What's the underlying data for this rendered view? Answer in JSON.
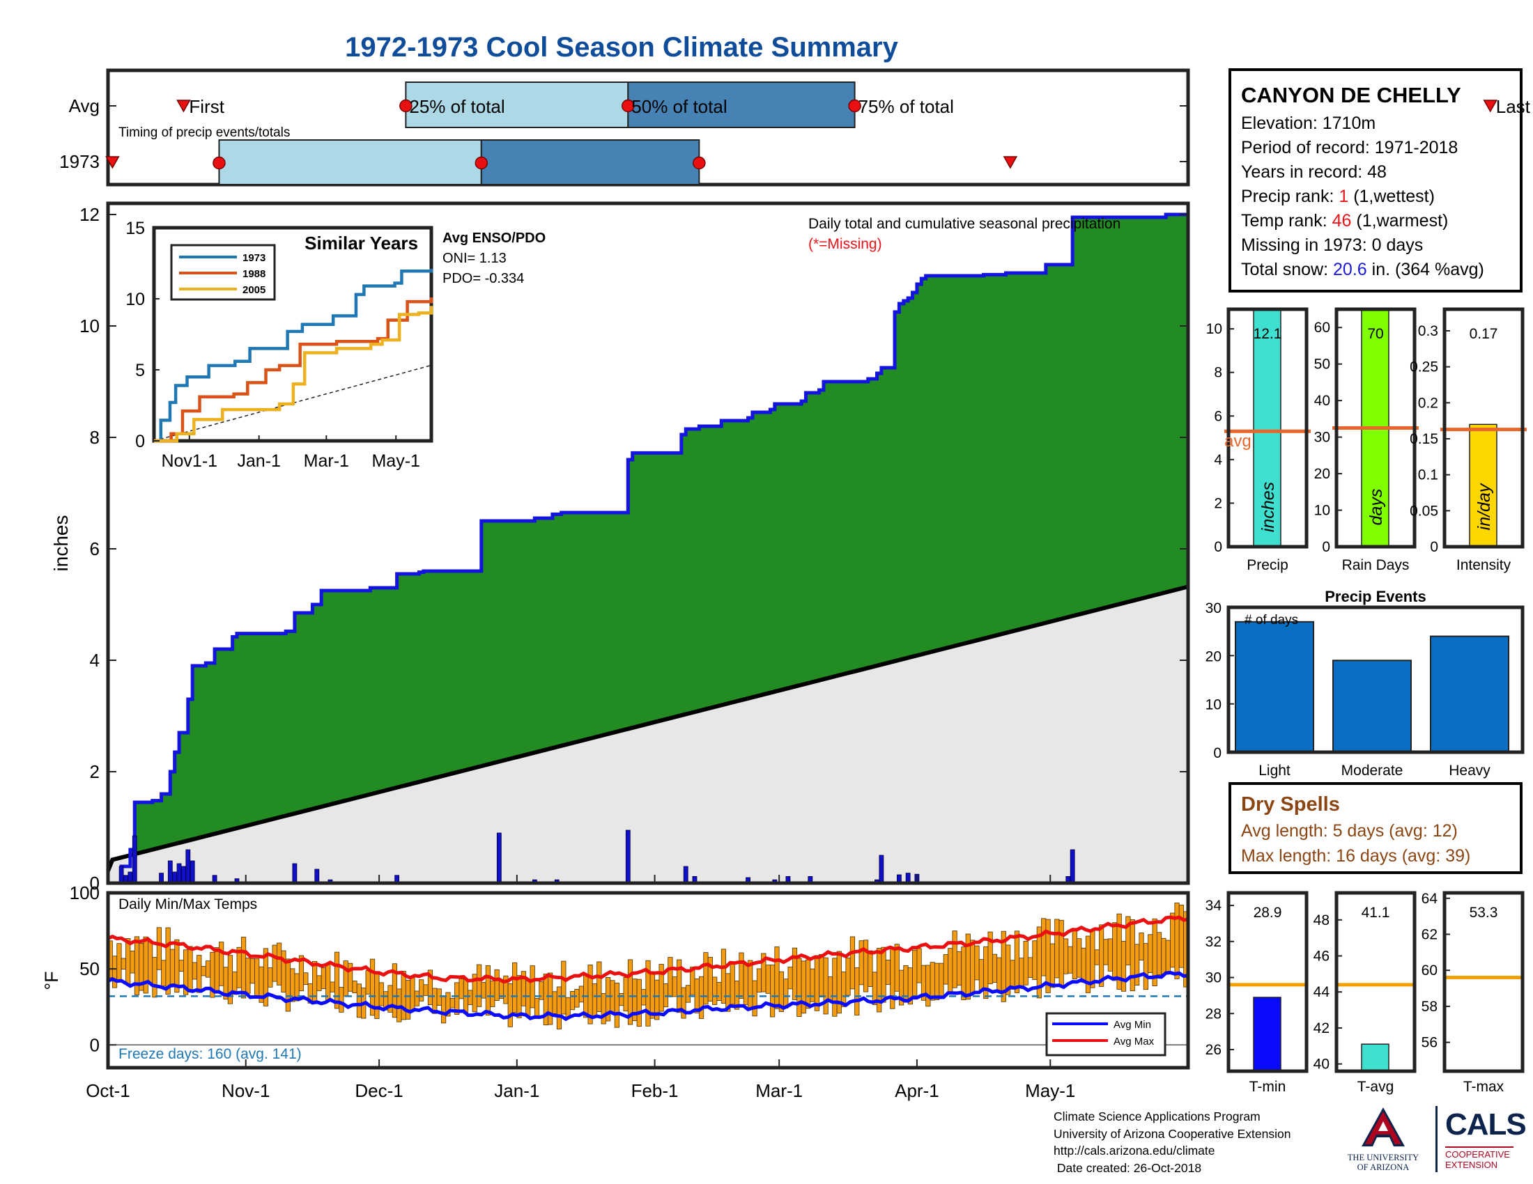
{
  "title": "1972-1973 Cool Season Climate Summary",
  "colors": {
    "title": "#0f4c9a",
    "green_fill": "#228b22",
    "normal_fill": "#e9e7e6",
    "cum_line": "#1414e0",
    "bar_light": "#add8e6",
    "bar_dark": "#4682b4",
    "orange": "#f39c12",
    "avg_line": "#e8662b"
  },
  "timing": {
    "row_labels": [
      "Avg",
      "1973"
    ],
    "caption": "Timing of precip events/totals",
    "markers": {
      "first": "First",
      "q25": "25% of total",
      "q50": "50% of total",
      "q75": "75% of total",
      "last": "Last"
    },
    "avg": {
      "first": 17,
      "q25": 67,
      "q50": 117,
      "q75": 168,
      "last": 311
    },
    "y1973": {
      "first": 1,
      "q25": 25,
      "q50": 84,
      "q75": 133,
      "last": 203
    }
  },
  "station": {
    "name": "CANYON DE CHELLY",
    "elevation": "Elevation: 1710m",
    "period": "Period of record: 1971-2018",
    "years": "Years in record: 48",
    "precip_rank_label": "Precip rank:",
    "precip_rank": "1",
    "precip_rank_note": "(1,wettest)",
    "temp_rank_label": "Temp rank:",
    "temp_rank": "46",
    "temp_rank_note": "(1,warmest)",
    "missing": "Missing in 1973: 0 days",
    "snow_label": "Total snow:",
    "snow_value": "20.6",
    "snow_note": "in. (364 %avg)"
  },
  "main_chart": {
    "ylabel": "inches",
    "annotation": "Daily total and cumulative seasonal precipitation",
    "missing_note": "(*=Missing)",
    "yticks": [
      0,
      2,
      4,
      6,
      8,
      10,
      12
    ],
    "xticks": [
      "Oct-1",
      "Nov-1",
      "Dec-1",
      "Jan-1",
      "Feb-1",
      "Mar-1",
      "Apr-1",
      "May-1"
    ],
    "xtick_days": [
      0,
      31,
      61,
      92,
      123,
      151,
      182,
      212
    ],
    "ylim": [
      0,
      12.2
    ],
    "days": 243,
    "cumulative_1973": [
      [
        0,
        0
      ],
      [
        3,
        0.3
      ],
      [
        5,
        0.6
      ],
      [
        6,
        1.45
      ],
      [
        10,
        1.48
      ],
      [
        12,
        1.6
      ],
      [
        14,
        2.0
      ],
      [
        15,
        2.35
      ],
      [
        16,
        2.7
      ],
      [
        18,
        3.3
      ],
      [
        19,
        3.9
      ],
      [
        22,
        3.95
      ],
      [
        24,
        4.2
      ],
      [
        28,
        4.42
      ],
      [
        29,
        4.48
      ],
      [
        40,
        4.52
      ],
      [
        42,
        4.85
      ],
      [
        46,
        5.0
      ],
      [
        48,
        5.25
      ],
      [
        59,
        5.3
      ],
      [
        65,
        5.55
      ],
      [
        70,
        5.58
      ],
      [
        71,
        5.6
      ],
      [
        84,
        6.5
      ],
      [
        96,
        6.55
      ],
      [
        100,
        6.62
      ],
      [
        102,
        6.65
      ],
      [
        117,
        7.6
      ],
      [
        118,
        7.72
      ],
      [
        129,
        8.05
      ],
      [
        130,
        8.15
      ],
      [
        133,
        8.2
      ],
      [
        138,
        8.3
      ],
      [
        144,
        8.35
      ],
      [
        145,
        8.45
      ],
      [
        149,
        8.5
      ],
      [
        150,
        8.6
      ],
      [
        156,
        8.65
      ],
      [
        157,
        8.8
      ],
      [
        160,
        8.85
      ],
      [
        161,
        9.0
      ],
      [
        171,
        9.05
      ],
      [
        173,
        9.15
      ],
      [
        174,
        9.25
      ],
      [
        177,
        10.25
      ],
      [
        178,
        10.4
      ],
      [
        179,
        10.45
      ],
      [
        180,
        10.5
      ],
      [
        181,
        10.6
      ],
      [
        182,
        10.75
      ],
      [
        183,
        10.85
      ],
      [
        184,
        10.9
      ],
      [
        197,
        10.92
      ],
      [
        202,
        10.95
      ],
      [
        211,
        11.1
      ],
      [
        217,
        11.95
      ],
      [
        238,
        12.0
      ],
      [
        243,
        12.1
      ]
    ],
    "normal_end": 5.32,
    "daily_bars": [
      [
        3,
        0.3
      ],
      [
        4,
        0.14
      ],
      [
        5,
        0.2
      ],
      [
        6,
        0.85
      ],
      [
        12,
        0.18
      ],
      [
        14,
        0.4
      ],
      [
        15,
        0.2
      ],
      [
        16,
        0.35
      ],
      [
        17,
        0.3
      ],
      [
        18,
        0.6
      ],
      [
        19,
        0.4
      ],
      [
        24,
        0.14
      ],
      [
        29,
        0.08
      ],
      [
        42,
        0.35
      ],
      [
        47,
        0.25
      ],
      [
        50,
        0.06
      ],
      [
        65,
        0.14
      ],
      [
        88,
        0.9
      ],
      [
        96,
        0.06
      ],
      [
        101,
        0.06
      ],
      [
        117,
        0.95
      ],
      [
        130,
        0.3
      ],
      [
        132,
        0.12
      ],
      [
        144,
        0.1
      ],
      [
        150,
        0.06
      ],
      [
        153,
        0.12
      ],
      [
        158,
        0.12
      ],
      [
        173,
        0.06
      ],
      [
        174,
        0.5
      ],
      [
        178,
        0.15
      ],
      [
        180,
        0.18
      ],
      [
        182,
        0.16
      ],
      [
        216,
        0.12
      ],
      [
        217,
        0.6
      ]
    ]
  },
  "inset": {
    "title": "Similar Years",
    "yticks": [
      0,
      5,
      10,
      15
    ],
    "xticks": [
      "Nov1-1",
      "Jan-1",
      "Mar-1",
      "May-1"
    ],
    "xtick_days": [
      31,
      92,
      151,
      212
    ],
    "ylim": [
      0,
      15
    ],
    "series": [
      {
        "name": "1973",
        "color": "#1f77b4",
        "points": [
          [
            0,
            0
          ],
          [
            6,
            1.45
          ],
          [
            14,
            2.7
          ],
          [
            19,
            3.9
          ],
          [
            29,
            4.5
          ],
          [
            48,
            5.3
          ],
          [
            71,
            5.6
          ],
          [
            84,
            6.5
          ],
          [
            117,
            7.7
          ],
          [
            130,
            8.2
          ],
          [
            157,
            8.8
          ],
          [
            177,
            10.3
          ],
          [
            184,
            10.9
          ],
          [
            211,
            11.1
          ],
          [
            217,
            11.95
          ],
          [
            243,
            12.1
          ]
        ]
      },
      {
        "name": "1988",
        "color": "#d95319",
        "points": [
          [
            0,
            0
          ],
          [
            15,
            0.5
          ],
          [
            25,
            2.1
          ],
          [
            40,
            3.1
          ],
          [
            70,
            3.3
          ],
          [
            82,
            4.1
          ],
          [
            98,
            5.0
          ],
          [
            110,
            5.3
          ],
          [
            128,
            6.8
          ],
          [
            160,
            7.0
          ],
          [
            196,
            7.2
          ],
          [
            205,
            8.5
          ],
          [
            222,
            9.8
          ],
          [
            243,
            10.1
          ]
        ]
      },
      {
        "name": "2005",
        "color": "#edb120",
        "points": [
          [
            0,
            0
          ],
          [
            20,
            0.5
          ],
          [
            35,
            1.5
          ],
          [
            60,
            2.2
          ],
          [
            110,
            2.6
          ],
          [
            122,
            4.0
          ],
          [
            132,
            6.2
          ],
          [
            160,
            6.5
          ],
          [
            190,
            6.8
          ],
          [
            200,
            7.1
          ],
          [
            215,
            8.9
          ],
          [
            232,
            9.0
          ],
          [
            243,
            9.5
          ]
        ]
      }
    ],
    "normal_end": 5.32
  },
  "enso": {
    "title": "Avg ENSO/PDO",
    "oni": "ONI= 1.13",
    "pdo": "PDO= -0.334"
  },
  "summary_bars": [
    {
      "label": "Precip",
      "unit": "inches",
      "value": 12.1,
      "value_label": "12.1",
      "avg": 5.3,
      "avg_label": "avg",
      "ylim": [
        0,
        10.9
      ],
      "yticks": [
        0,
        2,
        4,
        6,
        8,
        10
      ],
      "color": "#40e0d0"
    },
    {
      "label": "Rain Days",
      "unit": "days",
      "value": 70,
      "value_label": "70",
      "avg": 32.5,
      "ylim": [
        0,
        65
      ],
      "yticks": [
        0,
        10,
        20,
        30,
        40,
        50,
        60
      ],
      "color": "#7fff00"
    },
    {
      "label": "Intensity",
      "unit": "in/day",
      "value": 0.17,
      "value_label": "0.17",
      "avg": 0.163,
      "ylim": [
        0,
        0.33
      ],
      "yticks": [
        0,
        0.05,
        0.1,
        0.15,
        0.2,
        0.25,
        0.3
      ],
      "ytick_labels": [
        "0",
        "0.05",
        "0.1",
        "0.15",
        "0.2",
        "0.25",
        "0.3"
      ],
      "color": "#ffd700"
    }
  ],
  "precip_events": {
    "title": "Precip Events",
    "ylabel": "# of days",
    "categories": [
      "Light",
      "Moderate",
      "Heavy"
    ],
    "values": [
      27,
      19,
      24
    ],
    "ylim": [
      0,
      30
    ],
    "yticks": [
      0,
      10,
      20,
      30
    ]
  },
  "dry_spells": {
    "title": "Dry Spells",
    "avg_length": "Avg length: 5 days (avg: 12)",
    "max_length": "Max length: 16 days (avg: 39)"
  },
  "temps": {
    "title": "Daily Min/Max Temps",
    "ylabel": "°F",
    "yticks": [
      0,
      50,
      100
    ],
    "ylim": [
      -15,
      100
    ],
    "freeze_ref": 32,
    "freeze_text": "Freeze days: 160 (avg. 141)",
    "legend": [
      "Avg Min",
      "Avg Max"
    ],
    "avg_max": [
      [
        0,
        70
      ],
      [
        15,
        66
      ],
      [
        31,
        60
      ],
      [
        46,
        54
      ],
      [
        61,
        48
      ],
      [
        75,
        44
      ],
      [
        92,
        43
      ],
      [
        106,
        45
      ],
      [
        123,
        48
      ],
      [
        137,
        52
      ],
      [
        151,
        56
      ],
      [
        165,
        60
      ],
      [
        182,
        64
      ],
      [
        197,
        68
      ],
      [
        212,
        73
      ],
      [
        228,
        79
      ],
      [
        243,
        84
      ]
    ],
    "avg_min": [
      [
        0,
        42
      ],
      [
        15,
        38
      ],
      [
        31,
        33
      ],
      [
        46,
        29
      ],
      [
        61,
        25
      ],
      [
        75,
        22
      ],
      [
        92,
        19
      ],
      [
        106,
        19
      ],
      [
        123,
        21
      ],
      [
        137,
        24
      ],
      [
        151,
        26
      ],
      [
        165,
        28
      ],
      [
        182,
        31
      ],
      [
        197,
        35
      ],
      [
        212,
        39
      ],
      [
        228,
        44
      ],
      [
        243,
        47
      ]
    ]
  },
  "temp_bars": [
    {
      "label": "T-min",
      "value": 28.9,
      "value_label": "28.9",
      "avg": 29.6,
      "ylim": [
        24.8,
        34.7
      ],
      "yticks": [
        26,
        28,
        30,
        32,
        34
      ],
      "color": "#0a0aff"
    },
    {
      "label": "T-avg",
      "value": 41.1,
      "value_label": "41.1",
      "avg": 44.4,
      "ylim": [
        39.6,
        49.5
      ],
      "yticks": [
        40,
        42,
        44,
        46,
        48
      ],
      "color": "#40e0d0"
    },
    {
      "label": "T-max",
      "value": 53.3,
      "value_label": "53.3",
      "avg": 59.6,
      "ylim": [
        54.4,
        64.3
      ],
      "yticks": [
        56,
        58,
        60,
        62,
        64
      ],
      "color": "#40e0d0"
    }
  ],
  "credits": {
    "line1": "Climate Science Applications Program",
    "line2": "University of Arizona Cooperative Extension",
    "line3": "http://cals.arizona.edu/climate",
    "line4": " Date created: 26-Oct-2018"
  },
  "logos": {
    "ua_line1": "THE UNIVERSITY",
    "ua_line2": "OF ARIZONA",
    "cals": "CALS",
    "cals_sub1": "COOPERATIVE",
    "cals_sub2": "EXTENSION"
  }
}
